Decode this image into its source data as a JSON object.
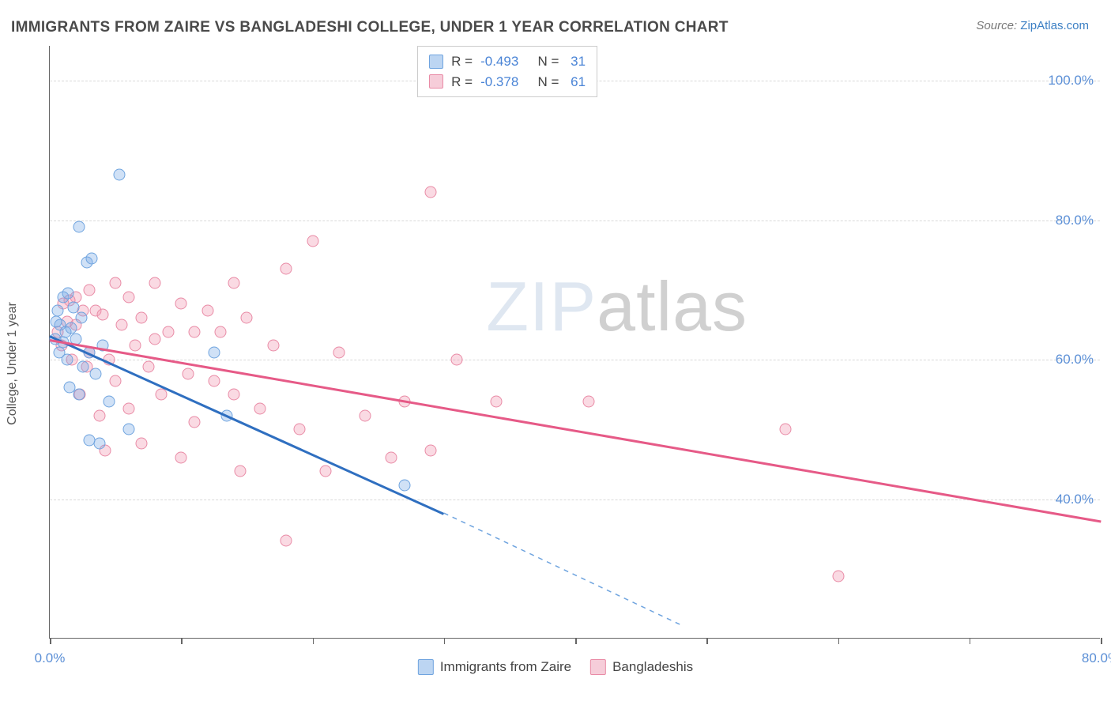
{
  "header": {
    "title": "IMMIGRANTS FROM ZAIRE VS BANGLADESHI COLLEGE, UNDER 1 YEAR CORRELATION CHART",
    "source_prefix": "Source: ",
    "source_link": "ZipAtlas.com"
  },
  "watermark": {
    "light": "ZIP",
    "dark": "atlas"
  },
  "chart": {
    "type": "scatter",
    "ylabel": "College, Under 1 year",
    "background_color": "#ffffff",
    "grid_color": "#d9d9d9",
    "xlim": [
      0,
      80
    ],
    "ylim": [
      20,
      105
    ],
    "x_ticks": [
      0,
      10,
      20,
      30,
      40,
      50,
      60,
      70,
      80
    ],
    "x_tick_labels": {
      "0": "0.0%",
      "80": "80.0%"
    },
    "y_ticks": [
      40,
      60,
      80,
      100
    ],
    "y_tick_labels": {
      "40": "40.0%",
      "60": "60.0%",
      "80": "80.0%",
      "100": "100.0%"
    },
    "marker_radius": 7.5,
    "axis_fontsize": 17,
    "label_fontsize": 16,
    "series": [
      {
        "name": "Immigrants from Zaire",
        "fill": "rgba(120,170,230,0.35)",
        "stroke": "#6fa4df",
        "swatch_fill": "#bcd5f2",
        "swatch_stroke": "#6fa4df",
        "r": "-0.493",
        "n": "31",
        "trend": {
          "x1": 0,
          "y1": 63.5,
          "x2": 30,
          "y2": 38,
          "color": "#2f6fc0",
          "width": 2.5
        },
        "trend_ext": {
          "x1": 30,
          "y1": 38,
          "x2": 48,
          "y2": 22,
          "color": "#6fa4df",
          "dash": true
        },
        "points": [
          [
            5.3,
            86.5
          ],
          [
            2.2,
            79
          ],
          [
            2.8,
            74
          ],
          [
            3.2,
            74.5
          ],
          [
            1.0,
            69
          ],
          [
            1.4,
            69.5
          ],
          [
            1.8,
            67.5
          ],
          [
            2.4,
            66
          ],
          [
            0.6,
            67
          ],
          [
            0.8,
            65
          ],
          [
            1.2,
            64
          ],
          [
            0.5,
            65.5
          ],
          [
            1.6,
            64.5
          ],
          [
            0.4,
            63
          ],
          [
            2.0,
            63
          ],
          [
            1.0,
            62.5
          ],
          [
            0.7,
            61
          ],
          [
            1.3,
            60
          ],
          [
            3.0,
            61
          ],
          [
            2.5,
            59
          ],
          [
            4.0,
            62
          ],
          [
            3.5,
            58
          ],
          [
            4.5,
            54
          ],
          [
            1.5,
            56
          ],
          [
            2.2,
            55
          ],
          [
            6.0,
            50
          ],
          [
            3.8,
            48
          ],
          [
            3.0,
            48.5
          ],
          [
            13.5,
            52
          ],
          [
            12.5,
            61
          ],
          [
            27,
            42
          ]
        ]
      },
      {
        "name": "Bangladeshis",
        "fill": "rgba(240,150,175,0.35)",
        "stroke": "#e98ba6",
        "swatch_fill": "#f6cdd9",
        "swatch_stroke": "#e98ba6",
        "r": "-0.378",
        "n": "61",
        "trend": {
          "x1": 0,
          "y1": 63,
          "x2": 80,
          "y2": 37,
          "color": "#e65a87",
          "width": 2.5
        },
        "points": [
          [
            29,
            84
          ],
          [
            20,
            77
          ],
          [
            18,
            73
          ],
          [
            14,
            71
          ],
          [
            8,
            71
          ],
          [
            5,
            71
          ],
          [
            3,
            70
          ],
          [
            2,
            69
          ],
          [
            1.5,
            68.5
          ],
          [
            1,
            68
          ],
          [
            6,
            69
          ],
          [
            10,
            68
          ],
          [
            3.5,
            67
          ],
          [
            2.5,
            67
          ],
          [
            4,
            66.5
          ],
          [
            7,
            66
          ],
          [
            12,
            67
          ],
          [
            5.5,
            65
          ],
          [
            2,
            65
          ],
          [
            1.3,
            65.5
          ],
          [
            9,
            64
          ],
          [
            11,
            64
          ],
          [
            8,
            63
          ],
          [
            15,
            66
          ],
          [
            13,
            64
          ],
          [
            17,
            62
          ],
          [
            6.5,
            62
          ],
          [
            3,
            61
          ],
          [
            22,
            61
          ],
          [
            4.5,
            60
          ],
          [
            7.5,
            59
          ],
          [
            2.8,
            59
          ],
          [
            10.5,
            58
          ],
          [
            5,
            57
          ],
          [
            12.5,
            57
          ],
          [
            14,
            55
          ],
          [
            8.5,
            55
          ],
          [
            16,
            53
          ],
          [
            6,
            53
          ],
          [
            11,
            51
          ],
          [
            27,
            54
          ],
          [
            29,
            47
          ],
          [
            24,
            52
          ],
          [
            34,
            54
          ],
          [
            41,
            54
          ],
          [
            21,
            44
          ],
          [
            14.5,
            44
          ],
          [
            10,
            46
          ],
          [
            7,
            48
          ],
          [
            4.2,
            47
          ],
          [
            18,
            34
          ],
          [
            56,
            50
          ],
          [
            60,
            29
          ],
          [
            31,
            60
          ],
          [
            26,
            46
          ],
          [
            19,
            50
          ],
          [
            3.8,
            52
          ],
          [
            2.3,
            55
          ],
          [
            1.7,
            60
          ],
          [
            0.9,
            62
          ],
          [
            0.6,
            64
          ]
        ]
      }
    ],
    "corr_box": {
      "left_pct": 35,
      "top_pct": 0
    },
    "legend": {
      "items": [
        {
          "series": 0,
          "label": "Immigrants from Zaire"
        },
        {
          "series": 1,
          "label": "Bangladeshis"
        }
      ]
    }
  }
}
